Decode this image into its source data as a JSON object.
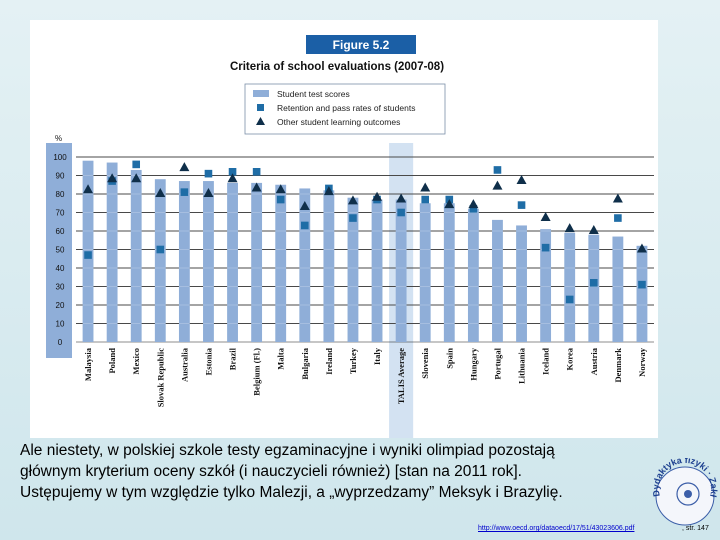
{
  "figure": {
    "badge": "Figure 5.2",
    "title": "Criteria of school evaluations (2007-08)"
  },
  "chart_data": {
    "type": "bar",
    "y_unit": "%",
    "ylim": [
      0,
      100
    ],
    "y_ticks": [
      0,
      10,
      20,
      30,
      40,
      50,
      60,
      70,
      80,
      90,
      100
    ],
    "grid": true,
    "legend_position": "top",
    "categories": [
      "Malaysia",
      "Poland",
      "Mexico",
      "Slovak Republic",
      "Australia",
      "Estonia",
      "Brazil",
      "Belgium (Fl.)",
      "Malta",
      "Bulgaria",
      "Ireland",
      "Turkey",
      "Italy",
      "TALIS Average",
      "Slovenia",
      "Spain",
      "Hungary",
      "Portugal",
      "Lithuania",
      "Iceland",
      "Korea",
      "Austria",
      "Denmark",
      "Norway"
    ],
    "highlighted_categories": [
      "TALIS Average"
    ],
    "series": [
      {
        "name": "Student test scores",
        "marker": "bar",
        "color": "#8faed8",
        "values": [
          98,
          97,
          93,
          88,
          87,
          87,
          86,
          86,
          85,
          83,
          82,
          78,
          77,
          77,
          75,
          75,
          72,
          66,
          63,
          61,
          59,
          58,
          57,
          52
        ]
      },
      {
        "name": "Retention and pass rates of students",
        "marker": "square",
        "color": "#1f6da6",
        "values": [
          47,
          87,
          96,
          50,
          81,
          91,
          92,
          92,
          77,
          63,
          83,
          67,
          77,
          70,
          77,
          77,
          72,
          93,
          74,
          51,
          23,
          32,
          67,
          31
        ]
      },
      {
        "name": "Other student learning outcomes",
        "marker": "triangle",
        "color": "#0f2f4a",
        "values": [
          82,
          88,
          88,
          80,
          94,
          80,
          88,
          83,
          82,
          73,
          81,
          76,
          78,
          77,
          83,
          74,
          74,
          84,
          87,
          67,
          61,
          60,
          77,
          50
        ]
      }
    ]
  },
  "caption": {
    "line1": "Ale niestety, w polskiej szkole testy egzaminacyjne i wyniki olimpiad pozostają",
    "line2": "głównym kryterium oceny szkół (i nauczycieli również) [stan na 2011 rok].",
    "line3": "Ustępujemy w tym względzie tylko Malezji, a „wyprzedzamy” Meksyk i Brazylię."
  },
  "seal": {
    "text": "Dydaktyka fizyki · Zakład"
  },
  "source": {
    "link": "http://www.oecd.org/dataoecd/17/51/43023606.pdf",
    "page": ", str. 147"
  }
}
